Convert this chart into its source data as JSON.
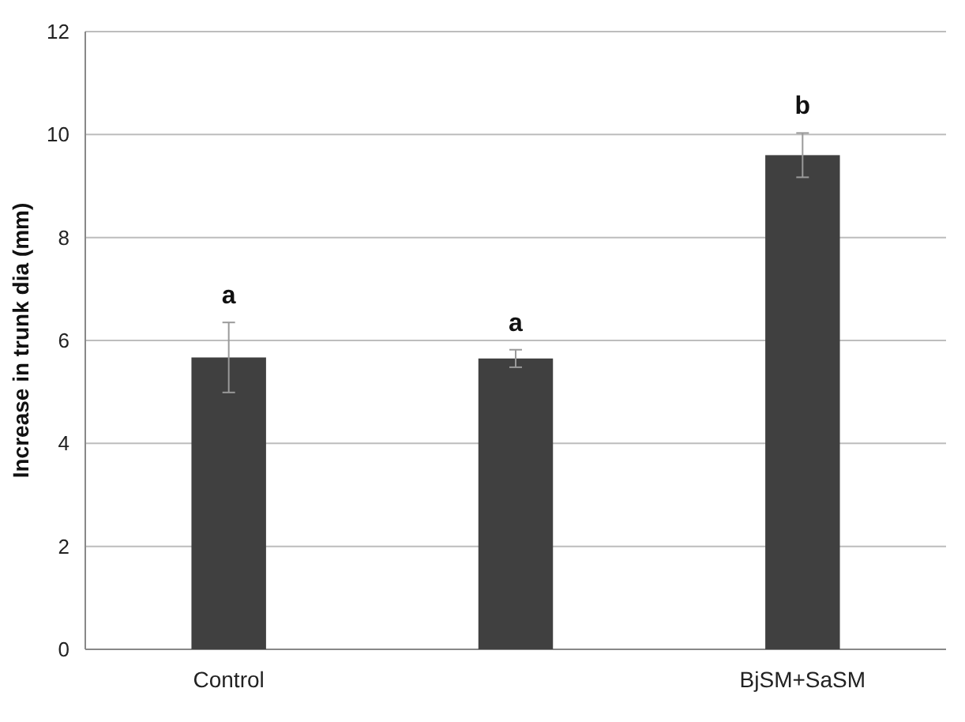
{
  "chart_data": {
    "type": "bar",
    "ylabel": "Increase in trunk dia (mm)",
    "categories": [
      "Control",
      null,
      "BjSM+SaSM"
    ],
    "values": [
      5.67,
      5.65,
      9.6
    ],
    "errors": [
      0.68,
      0.17,
      0.43
    ],
    "color": "#404040",
    "ylim": [
      0,
      12
    ],
    "yticks": [
      0,
      2,
      4,
      6,
      8,
      10,
      12
    ],
    "grid": "y",
    "annotations": [
      {
        "text": "a",
        "x": "Control",
        "y": 6.35
      },
      {
        "text": "a",
        "y": 5.82
      },
      {
        "text": "b",
        "x": "BjSM+SaSM",
        "y": 10.03
      }
    ]
  }
}
